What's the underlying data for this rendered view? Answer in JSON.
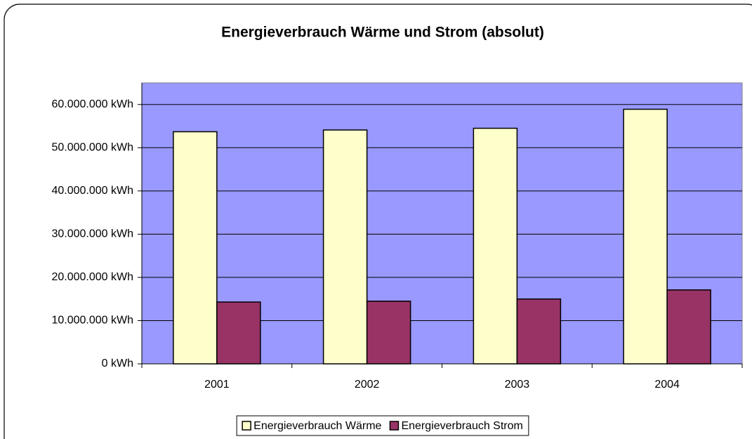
{
  "chart_data": {
    "type": "bar",
    "title": "Energieverbrauch Wärme und Strom (absolut)",
    "categories": [
      "2001",
      "2002",
      "2003",
      "2004"
    ],
    "series": [
      {
        "name": "Energieverbrauch Wärme",
        "color": "#ffffcc",
        "values": [
          53700000,
          54100000,
          54500000,
          58900000
        ]
      },
      {
        "name": "Energieverbrauch Strom",
        "color": "#993366",
        "values": [
          14300000,
          14500000,
          15000000,
          17100000
        ]
      }
    ],
    "ylim": [
      0,
      65000000
    ],
    "yticks": [
      {
        "value": 0,
        "label": "0 kWh"
      },
      {
        "value": 10000000,
        "label": "10.000.000 kWh"
      },
      {
        "value": 20000000,
        "label": "20.000.000 kWh"
      },
      {
        "value": 30000000,
        "label": "30.000.000 kWh"
      },
      {
        "value": 40000000,
        "label": "40.000.000 kWh"
      },
      {
        "value": 50000000,
        "label": "50.000.000 kWh"
      },
      {
        "value": 60000000,
        "label": "60.000.000 kWh"
      }
    ],
    "grid": true,
    "plot_background": "#9999ff",
    "legend": "bottom"
  }
}
